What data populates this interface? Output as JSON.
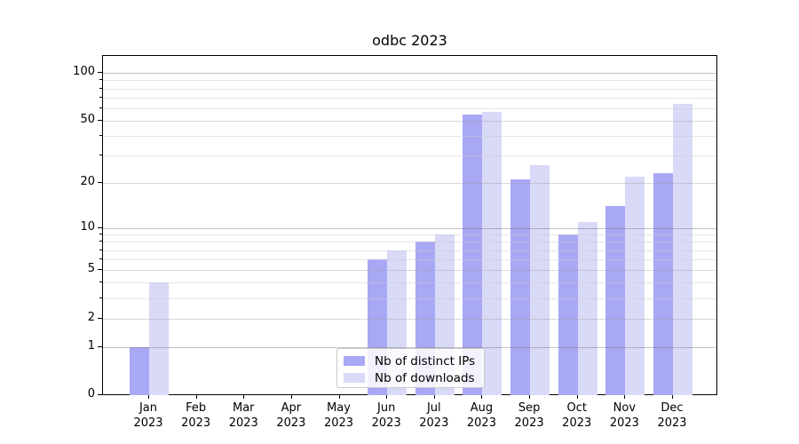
{
  "title": "odbc 2023",
  "legend": {
    "items": [
      {
        "label": "Nb of distinct IPs",
        "color": "#a8a8f5"
      },
      {
        "label": "Nb of downloads",
        "color": "#d9d9f8"
      }
    ]
  },
  "chart_data": {
    "type": "bar",
    "title": "odbc 2023",
    "categories": [
      "Jan",
      "Feb",
      "Mar",
      "Apr",
      "May",
      "Jun",
      "Jul",
      "Aug",
      "Sep",
      "Oct",
      "Nov",
      "Dec"
    ],
    "category_year": "2023",
    "series": [
      {
        "name": "Nb of distinct IPs",
        "color": "#a8a8f5",
        "values": [
          1,
          0,
          0,
          0,
          0,
          6,
          8,
          55,
          21,
          9,
          14,
          23
        ]
      },
      {
        "name": "Nb of downloads",
        "color": "#d9d9f8",
        "values": [
          4,
          0,
          0,
          0,
          0,
          7,
          9,
          57,
          26,
          11,
          22,
          64
        ]
      }
    ],
    "y_scale": "log10(value+1)",
    "y_axis_ticks": [
      0,
      1,
      2,
      5,
      10,
      20,
      50,
      100
    ],
    "y_minor_gridlines": [
      3,
      4,
      6,
      7,
      8,
      9,
      30,
      40,
      60,
      70,
      80,
      90
    ],
    "y_major_gridlines": [
      1,
      10,
      100
    ],
    "y_mid_gridlines": [
      2,
      5,
      20,
      50
    ],
    "ylim": [
      0,
      129
    ],
    "grid": true,
    "legend_position": "bottom-center",
    "xlabel": "",
    "ylabel": ""
  }
}
